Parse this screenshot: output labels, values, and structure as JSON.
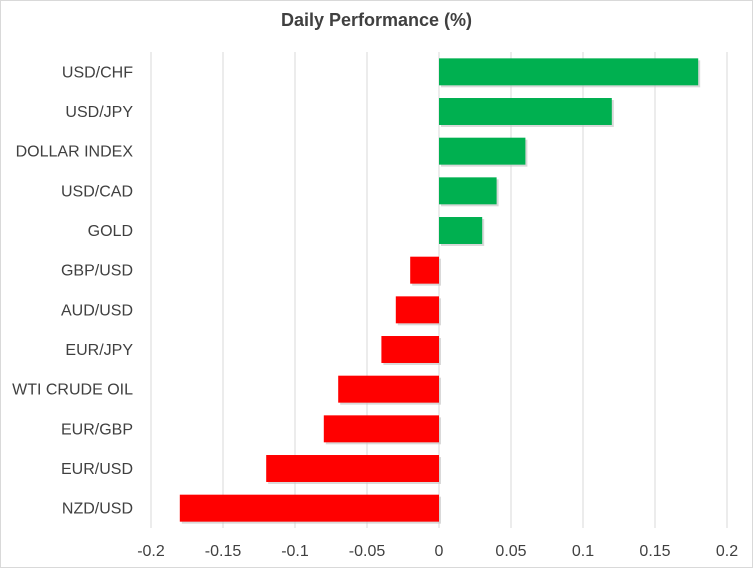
{
  "chart_data": {
    "type": "bar",
    "orientation": "horizontal",
    "title": "Daily Performance (%)",
    "xlabel": "",
    "ylabel": "",
    "xlim": [
      -0.2,
      0.2
    ],
    "xticks": [
      -0.2,
      -0.15,
      -0.1,
      -0.05,
      0,
      0.05,
      0.1,
      0.15,
      0.2
    ],
    "xtick_labels": [
      "-0.2",
      "-0.15",
      "-0.1",
      "-0.05",
      "0",
      "0.05",
      "0.1",
      "0.15",
      "0.2"
    ],
    "grid": "vertical",
    "legend": "none",
    "categories": [
      "USD/CHF",
      "USD/JPY",
      "DOLLAR INDEX",
      "USD/CAD",
      "GOLD",
      "GBP/USD",
      "AUD/USD",
      "EUR/JPY",
      "WTI CRUDE OIL",
      "EUR/GBP",
      "EUR/USD",
      "NZD/USD"
    ],
    "values": [
      0.18,
      0.12,
      0.06,
      0.04,
      0.03,
      -0.02,
      -0.03,
      -0.04,
      -0.07,
      -0.08,
      -0.12,
      -0.18
    ],
    "colors": {
      "positive": "#00b050",
      "negative": "#ff0000",
      "grid": "#d9d9d9",
      "text": "#404040"
    }
  }
}
